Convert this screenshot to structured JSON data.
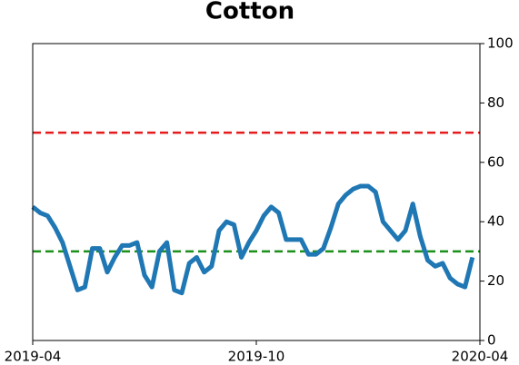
{
  "chart_data": {
    "type": "line",
    "title": "Cotton",
    "x": [
      0,
      2,
      4,
      6,
      8,
      10,
      12,
      14,
      16,
      18,
      20,
      22,
      24,
      26,
      28,
      30,
      32,
      34,
      36,
      38,
      40,
      42,
      44,
      46,
      48,
      50,
      52,
      54,
      56,
      58,
      60,
      62,
      64,
      66,
      68,
      70,
      72,
      74,
      76,
      78,
      80,
      82,
      84,
      86,
      88,
      90,
      92,
      94,
      96,
      98,
      100,
      102,
      104,
      106,
      108,
      110,
      112,
      114,
      116,
      118
    ],
    "series": [
      {
        "color": "#1f77b4",
        "values": [
          45,
          43,
          42,
          38,
          33,
          25,
          17,
          18,
          31,
          31,
          23,
          28,
          32,
          32,
          33,
          22,
          18,
          30,
          33,
          17,
          16,
          26,
          28,
          23,
          25,
          37,
          40,
          39,
          28,
          33,
          37,
          42,
          45,
          43,
          34,
          34,
          34,
          29,
          29,
          31,
          38,
          46,
          49,
          51,
          52,
          52,
          50,
          40,
          37,
          34,
          37,
          46,
          35,
          27,
          25,
          26,
          21,
          19,
          18,
          28
        ]
      }
    ],
    "xlim": [
      0,
      120
    ],
    "xticks": [
      {
        "value": 0,
        "label": "2019-04"
      },
      {
        "value": 60,
        "label": "2019-10"
      },
      {
        "value": 120,
        "label": "2020-04"
      }
    ],
    "ylim": [
      0,
      100
    ],
    "yticks": [
      0,
      20,
      40,
      60,
      80,
      100
    ],
    "y_axis_side": "right",
    "hlines": [
      {
        "value": 70,
        "color": "#e41a1c"
      },
      {
        "value": 30,
        "color": "#1a8f1a"
      }
    ]
  }
}
